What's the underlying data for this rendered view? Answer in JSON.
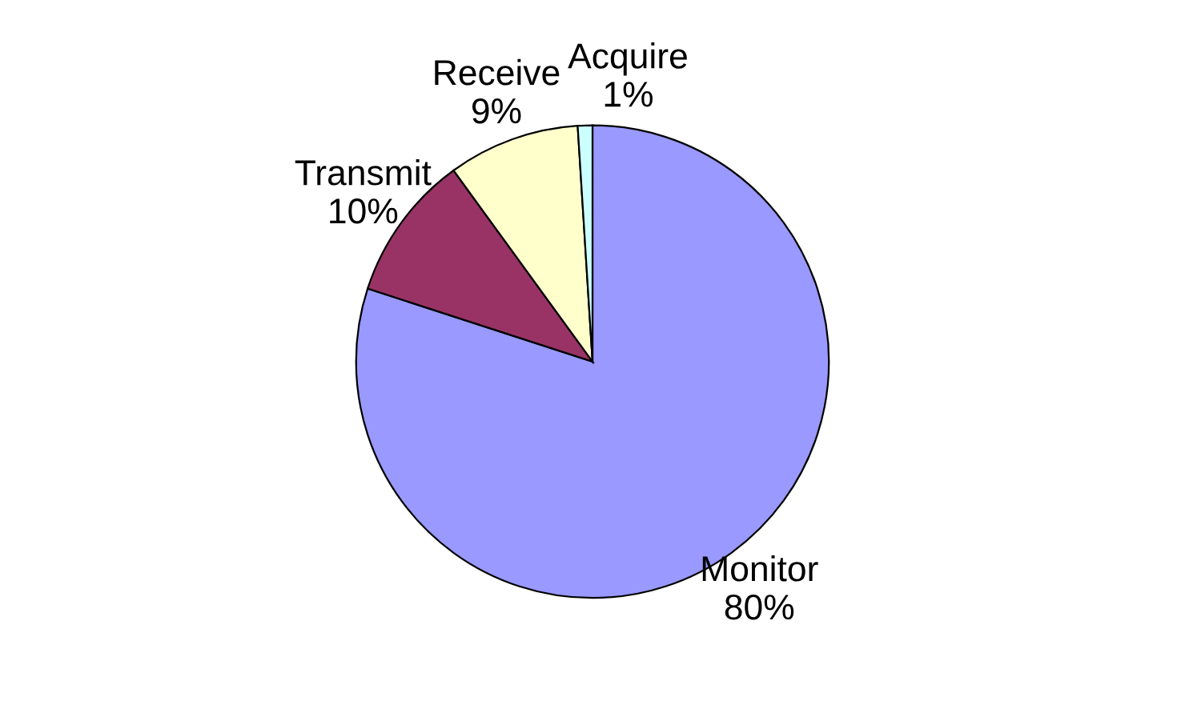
{
  "chart_data": {
    "type": "pie",
    "categories": [
      "Monitor",
      "Transmit",
      "Receive",
      "Acquire"
    ],
    "values": [
      80,
      10,
      9,
      1
    ],
    "value_labels": [
      "80%",
      "10%",
      "9%",
      "1%"
    ],
    "colors": [
      "#9999ff",
      "#993366",
      "#ffffcc",
      "#ccffff"
    ],
    "legend": false
  }
}
